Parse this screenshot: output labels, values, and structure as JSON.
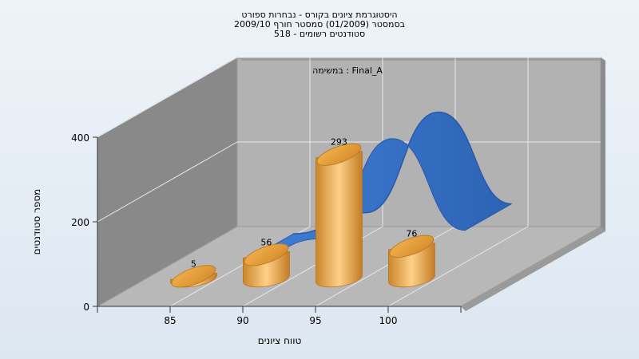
{
  "chart_data": {
    "type": "bar",
    "title_lines": [
      "היסטוגרמת ציונים בקורס - נבחרות ספורט",
      "בסמסטר  (01/2009)  סמסטר חורף 2009/10",
      "סטודנטים רשומים - 518"
    ],
    "subtitle": "במשימה : Final_A",
    "xlabel": "טווח ציונים",
    "ylabel": "מספר סטודנטים",
    "x_ticks": [
      "85",
      "90",
      "95",
      "100"
    ],
    "y_ticks": [
      0,
      200,
      400
    ],
    "ylim": [
      0,
      400
    ],
    "categories": [
      "85",
      "90",
      "95",
      "100"
    ],
    "series": [
      {
        "type": "bar",
        "values": [
          5,
          56,
          293,
          76
        ],
        "color": "#e5a24a"
      },
      {
        "type": "area",
        "values": [
          5,
          56,
          293,
          76
        ],
        "color": "#3a74c8"
      }
    ],
    "data_labels": [
      "5",
      "56",
      "293",
      "76"
    ],
    "grid": true,
    "style": "3d"
  }
}
